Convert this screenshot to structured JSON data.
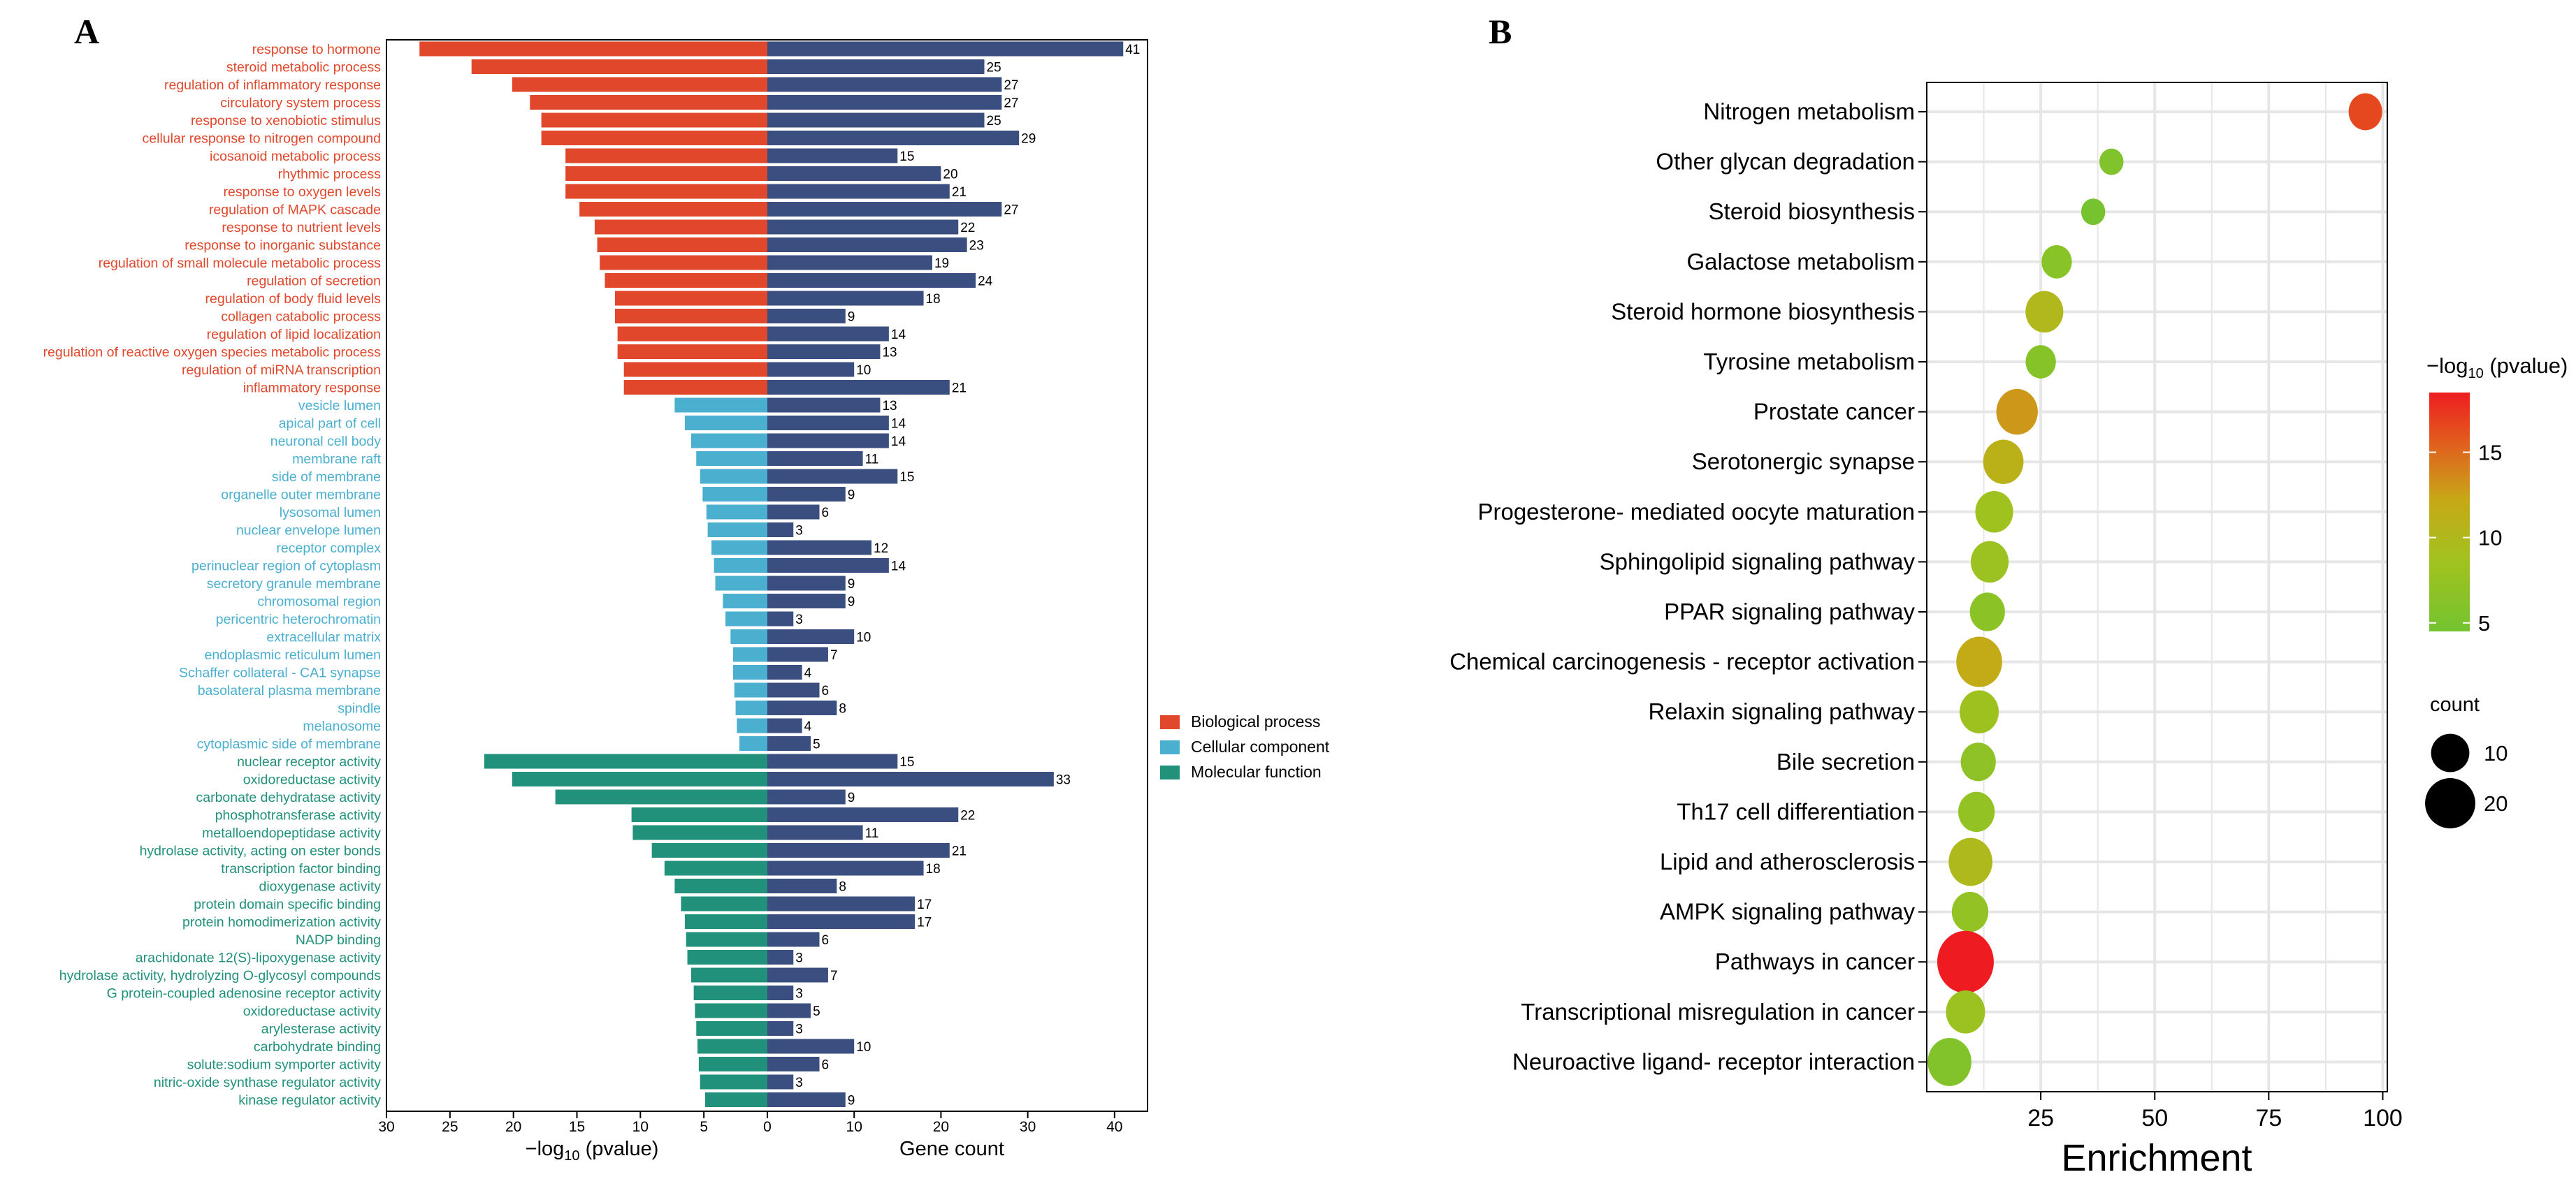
{
  "chart_data": [
    {
      "panel_label": "A",
      "type": "bar",
      "orientation": "horizontal-diverging",
      "left_axis_label": "−log",
      "left_axis_sub": "10",
      "left_axis_suffix": " (pvalue)",
      "right_axis_label": "Gene count",
      "left_ticks": [
        "30",
        "25",
        "20",
        "15",
        "10",
        "5",
        "0"
      ],
      "right_ticks": [
        "0",
        "10",
        "20",
        "30",
        "40"
      ],
      "left_range": [
        0,
        30
      ],
      "right_range": [
        0,
        40
      ],
      "legend": [
        {
          "name": "Biological process",
          "color": "#e1472b"
        },
        {
          "name": "Cellular component",
          "color": "#4bafd0"
        },
        {
          "name": "Molecular function",
          "color": "#21917b"
        }
      ],
      "count_color": "#3a4f7f",
      "terms": [
        {
          "name": "response to hormone",
          "cat": 0,
          "logp": 27.4,
          "count": 41
        },
        {
          "name": "steroid metabolic process",
          "cat": 0,
          "logp": 23.3,
          "count": 25
        },
        {
          "name": "regulation of inflammatory response",
          "cat": 0,
          "logp": 20.1,
          "count": 27
        },
        {
          "name": "circulatory system process",
          "cat": 0,
          "logp": 18.7,
          "count": 27
        },
        {
          "name": "response to xenobiotic stimulus",
          "cat": 0,
          "logp": 17.8,
          "count": 25
        },
        {
          "name": "cellular response to nitrogen compound",
          "cat": 0,
          "logp": 17.8,
          "count": 29
        },
        {
          "name": "icosanoid metabolic process",
          "cat": 0,
          "logp": 15.9,
          "count": 15
        },
        {
          "name": "rhythmic process",
          "cat": 0,
          "logp": 15.9,
          "count": 20
        },
        {
          "name": "response to oxygen levels",
          "cat": 0,
          "logp": 15.9,
          "count": 21
        },
        {
          "name": "regulation of MAPK cascade",
          "cat": 0,
          "logp": 14.8,
          "count": 27
        },
        {
          "name": "response to nutrient levels",
          "cat": 0,
          "logp": 13.6,
          "count": 22
        },
        {
          "name": "response to inorganic substance",
          "cat": 0,
          "logp": 13.4,
          "count": 23
        },
        {
          "name": "regulation of small molecule metabolic process",
          "cat": 0,
          "logp": 13.2,
          "count": 19
        },
        {
          "name": "regulation of secretion",
          "cat": 0,
          "logp": 12.8,
          "count": 24
        },
        {
          "name": "regulation of body fluid levels",
          "cat": 0,
          "logp": 12.0,
          "count": 18
        },
        {
          "name": "collagen catabolic process",
          "cat": 0,
          "logp": 12.0,
          "count": 9
        },
        {
          "name": "regulation of lipid localization",
          "cat": 0,
          "logp": 11.8,
          "count": 14
        },
        {
          "name": "regulation of reactive oxygen species metabolic process",
          "cat": 0,
          "logp": 11.8,
          "count": 13
        },
        {
          "name": "regulation of miRNA transcription",
          "cat": 0,
          "logp": 11.3,
          "count": 10
        },
        {
          "name": "inflammatory response",
          "cat": 0,
          "logp": 11.3,
          "count": 21
        },
        {
          "name": "vesicle lumen",
          "cat": 1,
          "logp": 7.3,
          "count": 13
        },
        {
          "name": "apical part of cell",
          "cat": 1,
          "logp": 6.5,
          "count": 14
        },
        {
          "name": "neuronal cell body",
          "cat": 1,
          "logp": 6.0,
          "count": 14
        },
        {
          "name": "membrane raft",
          "cat": 1,
          "logp": 5.6,
          "count": 11
        },
        {
          "name": "side of membrane",
          "cat": 1,
          "logp": 5.3,
          "count": 15
        },
        {
          "name": "organelle outer membrane",
          "cat": 1,
          "logp": 5.1,
          "count": 9
        },
        {
          "name": "lysosomal lumen",
          "cat": 1,
          "logp": 4.8,
          "count": 6
        },
        {
          "name": "nuclear envelope lumen",
          "cat": 1,
          "logp": 4.7,
          "count": 3
        },
        {
          "name": "receptor complex",
          "cat": 1,
          "logp": 4.4,
          "count": 12
        },
        {
          "name": "perinuclear region of cytoplasm",
          "cat": 1,
          "logp": 4.2,
          "count": 14
        },
        {
          "name": "secretory granule membrane",
          "cat": 1,
          "logp": 4.1,
          "count": 9
        },
        {
          "name": "chromosomal region",
          "cat": 1,
          "logp": 3.5,
          "count": 9
        },
        {
          "name": "pericentric heterochromatin",
          "cat": 1,
          "logp": 3.3,
          "count": 3
        },
        {
          "name": "extracellular matrix",
          "cat": 1,
          "logp": 2.9,
          "count": 10
        },
        {
          "name": "endoplasmic reticulum lumen",
          "cat": 1,
          "logp": 2.7,
          "count": 7
        },
        {
          "name": "Schaffer collateral - CA1 synapse",
          "cat": 1,
          "logp": 2.7,
          "count": 4
        },
        {
          "name": "basolateral plasma membrane",
          "cat": 1,
          "logp": 2.6,
          "count": 6
        },
        {
          "name": "spindle",
          "cat": 1,
          "logp": 2.5,
          "count": 8
        },
        {
          "name": "melanosome",
          "cat": 1,
          "logp": 2.4,
          "count": 4
        },
        {
          "name": "cytoplasmic side of membrane",
          "cat": 1,
          "logp": 2.2,
          "count": 5
        },
        {
          "name": "nuclear receptor activity",
          "cat": 2,
          "logp": 22.3,
          "count": 15
        },
        {
          "name": "oxidoreductase activity",
          "cat": 2,
          "logp": 20.1,
          "count": 33
        },
        {
          "name": "carbonate dehydratase activity",
          "cat": 2,
          "logp": 16.7,
          "count": 9
        },
        {
          "name": "phosphotransferase activity",
          "cat": 2,
          "logp": 10.7,
          "count": 22
        },
        {
          "name": "metalloendopeptidase activity",
          "cat": 2,
          "logp": 10.6,
          "count": 11
        },
        {
          "name": "hydrolase activity, acting on ester bonds",
          "cat": 2,
          "logp": 9.1,
          "count": 21
        },
        {
          "name": "transcription factor binding",
          "cat": 2,
          "logp": 8.1,
          "count": 18
        },
        {
          "name": "dioxygenase activity",
          "cat": 2,
          "logp": 7.3,
          "count": 8
        },
        {
          "name": "protein domain specific binding",
          "cat": 2,
          "logp": 6.8,
          "count": 17
        },
        {
          "name": "protein homodimerization activity",
          "cat": 2,
          "logp": 6.5,
          "count": 17
        },
        {
          "name": "NADP binding",
          "cat": 2,
          "logp": 6.4,
          "count": 6
        },
        {
          "name": "arachidonate 12(S)-lipoxygenase activity",
          "cat": 2,
          "logp": 6.3,
          "count": 3
        },
        {
          "name": "hydrolase activity, hydrolyzing O-glycosyl compounds",
          "cat": 2,
          "logp": 6.0,
          "count": 7
        },
        {
          "name": "G protein-coupled adenosine receptor activity",
          "cat": 2,
          "logp": 5.8,
          "count": 3
        },
        {
          "name": "oxidoreductase activity",
          "cat": 2,
          "logp": 5.7,
          "count": 5
        },
        {
          "name": "arylesterase activity",
          "cat": 2,
          "logp": 5.6,
          "count": 3
        },
        {
          "name": "carbohydrate binding",
          "cat": 2,
          "logp": 5.5,
          "count": 10
        },
        {
          "name": "solute:sodium symporter activity",
          "cat": 2,
          "logp": 5.4,
          "count": 6
        },
        {
          "name": "nitric-oxide synthase regulator activity",
          "cat": 2,
          "logp": 5.3,
          "count": 3
        },
        {
          "name": "kinase regulator activity",
          "cat": 2,
          "logp": 4.9,
          "count": 9
        }
      ]
    },
    {
      "panel_label": "B",
      "type": "scatter",
      "xlabel": "Enrichment",
      "x_ticks": [
        "25",
        "50",
        "75",
        "100"
      ],
      "x_tick_values": [
        25,
        50,
        75,
        100
      ],
      "xlim": [
        0,
        101
      ],
      "color_legend_title": "−log",
      "color_legend_sub": "10",
      "color_legend_suffix": " (pvalue)",
      "color_ticks": [
        "15",
        "10",
        "5"
      ],
      "color_tick_values": [
        15,
        10,
        5
      ],
      "color_range": [
        4.5,
        18.5
      ],
      "size_legend_title": "count",
      "size_ticks": [
        "10",
        "20"
      ],
      "size_tick_values": [
        10,
        20
      ],
      "pathways": [
        {
          "name": "Nitrogen metabolism",
          "enrichment": 96.2,
          "logp": 16.6,
          "count": 8
        },
        {
          "name": "Other glycan degradation",
          "enrichment": 40.5,
          "logp": 6.0,
          "count": 3
        },
        {
          "name": "Steroid biosynthesis",
          "enrichment": 36.5,
          "logp": 5.3,
          "count": 3
        },
        {
          "name": "Galactose metabolism",
          "enrichment": 28.5,
          "logp": 6.7,
          "count": 6
        },
        {
          "name": "Steroid hormone biosynthesis",
          "enrichment": 25.8,
          "logp": 10.4,
          "count": 11
        },
        {
          "name": "Tyrosine metabolism",
          "enrichment": 25.0,
          "logp": 6.6,
          "count": 6
        },
        {
          "name": "Prostate cancer",
          "enrichment": 19.8,
          "logp": 13.2,
          "count": 14
        },
        {
          "name": "Serotonergic synapse",
          "enrichment": 16.8,
          "logp": 11.3,
          "count": 13
        },
        {
          "name": "Progesterone- mediated oocyte maturation",
          "enrichment": 14.8,
          "logp": 8.7,
          "count": 11
        },
        {
          "name": "Sphingolipid signaling pathway",
          "enrichment": 13.8,
          "logp": 8.4,
          "count": 11
        },
        {
          "name": "PPAR signaling pathway",
          "enrichment": 13.3,
          "logp": 7.0,
          "count": 9
        },
        {
          "name": "Chemical carcinogenesis -  receptor activation",
          "enrichment": 11.5,
          "logp": 12.1,
          "count": 18
        },
        {
          "name": "Relaxin signaling pathway",
          "enrichment": 11.5,
          "logp": 8.6,
          "count": 12
        },
        {
          "name": "Bile secretion",
          "enrichment": 11.3,
          "logp": 7.3,
          "count": 9
        },
        {
          "name": "Th17 cell differentiation",
          "enrichment": 10.9,
          "logp": 7.6,
          "count": 10
        },
        {
          "name": "Lipid and atherosclerosis",
          "enrichment": 9.6,
          "logp": 10.1,
          "count": 16
        },
        {
          "name": "AMPK signaling pathway",
          "enrichment": 9.5,
          "logp": 7.6,
          "count": 10
        },
        {
          "name": "Pathways in cancer",
          "enrichment": 8.5,
          "logp": 18.5,
          "count": 30
        },
        {
          "name": "Transcriptional misregulation in cancer",
          "enrichment": 8.5,
          "logp": 8.4,
          "count": 12
        },
        {
          "name": "Neuroactive ligand- receptor interaction",
          "enrichment": 5.0,
          "logp": 6.2,
          "count": 16
        }
      ]
    }
  ]
}
